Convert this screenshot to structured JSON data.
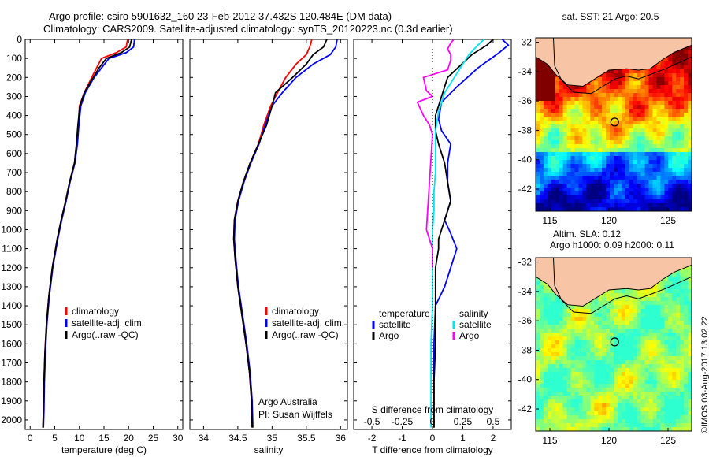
{
  "header": {
    "line1": "Argo profile: csiro 5901632_160 23-Feb-2012 37.432S 120.484E (DM data)",
    "line2": "Climatology: CARS2009. Satellite-adjusted climatology: synTS_20120223.nc (0.3d earlier)"
  },
  "colors": {
    "climatology": "#ff0000",
    "satellite": "#0000ff",
    "argo": "#000000",
    "argo_s": "#ff00ff",
    "sat_s": "#00e5ee",
    "land": "#f7c4a5"
  },
  "chart_data": [
    {
      "id": "temperature",
      "type": "line",
      "xlabel": "temperature (deg C)",
      "xlim": [
        -1,
        31
      ],
      "xticks": [
        "0",
        "5",
        "10",
        "15",
        "20",
        "25",
        "30"
      ],
      "xtick_values": [
        0,
        5,
        10,
        15,
        20,
        25,
        30
      ],
      "ylim": [
        2050,
        0
      ],
      "yticks": [
        "0",
        "100",
        "200",
        "300",
        "400",
        "500",
        "600",
        "700",
        "800",
        "900",
        "1000",
        "1100",
        "1200",
        "1300",
        "1400",
        "1500",
        "1600",
        "1700",
        "1800",
        "1900",
        "2000"
      ],
      "ytick_values": [
        0,
        100,
        200,
        300,
        400,
        500,
        600,
        700,
        800,
        900,
        1000,
        1100,
        1200,
        1300,
        1400,
        1500,
        1600,
        1700,
        1800,
        1900,
        2000
      ],
      "legend": [
        "climatology",
        "satellite-adj. clim.",
        "Argo(..raw -QC)"
      ],
      "series": [
        {
          "name": "climatology",
          "color": "#ff0000",
          "x": [
            19.8,
            19.5,
            17.5,
            14.5,
            13.5,
            12.5,
            11,
            10,
            9.8,
            9.5,
            9,
            8,
            7.2,
            6.3,
            5.5,
            4.5,
            3.8,
            3.3,
            3,
            2.8,
            2.7,
            2.6
          ],
          "y": [
            0,
            40,
            70,
            100,
            150,
            200,
            280,
            350,
            450,
            550,
            650,
            750,
            850,
            950,
            1050,
            1200,
            1350,
            1500,
            1650,
            1800,
            1950,
            2040
          ]
        },
        {
          "name": "satellite-adj. clim.",
          "color": "#0000ff",
          "x": [
            21.2,
            21,
            19.5,
            16,
            14.5,
            13,
            11.2,
            10.3,
            9.9,
            9.6,
            9.1,
            8.1,
            7.3,
            6.4,
            5.6,
            4.6,
            3.9,
            3.4,
            3.1,
            2.9,
            2.8,
            2.7
          ],
          "y": [
            0,
            40,
            70,
            100,
            150,
            200,
            280,
            350,
            450,
            550,
            650,
            750,
            850,
            950,
            1050,
            1200,
            1350,
            1500,
            1650,
            1800,
            1950,
            2040
          ]
        },
        {
          "name": "Argo(..raw -QC)",
          "color": "#000000",
          "x": [
            20.6,
            20.2,
            18.5,
            15.5,
            14,
            12.8,
            11,
            10.1,
            9.7,
            9.4,
            9,
            8,
            7.2,
            6.3,
            5.5,
            4.5,
            3.8,
            3.3,
            3,
            2.8,
            2.7,
            2.6
          ],
          "y": [
            0,
            40,
            70,
            100,
            150,
            200,
            280,
            350,
            450,
            550,
            650,
            750,
            850,
            950,
            1050,
            1200,
            1350,
            1500,
            1650,
            1800,
            1950,
            2040
          ]
        }
      ]
    },
    {
      "id": "salinity",
      "type": "line",
      "xlabel": "salinity",
      "xlim": [
        33.8,
        36.1
      ],
      "xticks": [
        "34",
        "34.5",
        "35",
        "35.5",
        "36"
      ],
      "xtick_values": [
        34,
        34.5,
        35,
        35.5,
        36
      ],
      "ylim": [
        2050,
        0
      ],
      "legend": [
        "climatology",
        "satellite-adj. clim.",
        "Argo(..raw -QC)"
      ],
      "annotation": [
        "Argo Australia",
        "PI: Susan Wijffels"
      ],
      "series": [
        {
          "name": "climatology",
          "color": "#ff0000",
          "x": [
            35.58,
            35.55,
            35.5,
            35.35,
            35.2,
            35.08,
            34.98,
            34.88,
            34.8,
            34.68,
            34.58,
            34.5,
            34.45,
            34.44,
            34.46,
            34.5,
            34.56,
            34.62,
            34.67,
            34.7,
            34.71
          ],
          "y": [
            0,
            40,
            80,
            130,
            200,
            280,
            350,
            450,
            550,
            650,
            750,
            850,
            950,
            1050,
            1150,
            1300,
            1450,
            1600,
            1750,
            1900,
            2040
          ]
        },
        {
          "name": "satellite-adj. clim.",
          "color": "#0000ff",
          "x": [
            35.95,
            35.93,
            35.85,
            35.6,
            35.35,
            35.15,
            35.0,
            34.9,
            34.81,
            34.69,
            34.59,
            34.51,
            34.46,
            34.45,
            34.47,
            34.51,
            34.57,
            34.63,
            34.68,
            34.71,
            34.72
          ],
          "y": [
            0,
            40,
            80,
            130,
            200,
            280,
            350,
            450,
            550,
            650,
            750,
            850,
            950,
            1050,
            1150,
            1300,
            1450,
            1600,
            1750,
            1900,
            2040
          ]
        },
        {
          "name": "Argo(..raw -QC)",
          "color": "#000000",
          "x": [
            35.8,
            35.75,
            35.6,
            35.5,
            35.3,
            35.05,
            35.0,
            34.92,
            34.8,
            34.68,
            34.58,
            34.5,
            34.45,
            34.44,
            34.46,
            34.5,
            34.56,
            34.62,
            34.67,
            34.7,
            34.71
          ],
          "y": [
            0,
            40,
            80,
            130,
            200,
            280,
            350,
            450,
            550,
            650,
            750,
            850,
            950,
            1050,
            1150,
            1300,
            1450,
            1600,
            1750,
            1900,
            2040
          ]
        }
      ]
    },
    {
      "id": "difference",
      "type": "line",
      "xlabel": "T difference from climatology",
      "xlabel2": "S difference from climatology",
      "xlim": [
        -2.6,
        2.6
      ],
      "xticks": [
        "-2",
        "-1",
        "0",
        "1",
        "2"
      ],
      "xtick_values": [
        -2,
        -1,
        0,
        1,
        2
      ],
      "xticks2": [
        "-0.5",
        "-0.25",
        "0",
        "0.25",
        "0.5"
      ],
      "legend_titles": [
        "temperature",
        "salinity"
      ],
      "legend_left": [
        "satellite",
        "Argo"
      ],
      "legend_right": [
        "satellite",
        "Argo"
      ],
      "ylim": [
        2050,
        0
      ],
      "series": [
        {
          "name": "temperature satellite",
          "color": "#0000ff",
          "x": [
            2.3,
            2.5,
            2.2,
            1.5,
            0.8,
            0.3,
            0.2,
            0.3,
            0.6,
            0.5,
            0.5,
            0.6,
            0.4,
            0.6,
            0.8,
            0.6,
            0.4,
            0.1,
            0.05,
            0.05,
            0.05
          ],
          "y": [
            0,
            30,
            70,
            150,
            250,
            330,
            420,
            480,
            550,
            650,
            750,
            850,
            950,
            1020,
            1100,
            1200,
            1300,
            1400,
            1600,
            1800,
            2040
          ]
        },
        {
          "name": "temperature Argo",
          "color": "#000000",
          "x": [
            2.0,
            1.8,
            1.3,
            0.5,
            0.3,
            0.1,
            0.1,
            0.2,
            0.4,
            0.5,
            0.6,
            0.4,
            0.3,
            0.2,
            0.2,
            0.1,
            0.1,
            0.1,
            0.05,
            0.05
          ],
          "y": [
            0,
            30,
            80,
            200,
            300,
            400,
            480,
            550,
            650,
            750,
            850,
            950,
            1000,
            1050,
            1100,
            1200,
            1400,
            1600,
            1800,
            2040
          ]
        },
        {
          "name": "salinity satellite",
          "color": "#00e5ee",
          "x": [
            1.7,
            1.5,
            1.2,
            0.8,
            0.4,
            0.2,
            0.1,
            0.1,
            0.1,
            0.05,
            0.05,
            0.0,
            0.0,
            0.0,
            -0.05,
            -0.05,
            -0.05
          ],
          "y": [
            0,
            30,
            80,
            180,
            280,
            380,
            480,
            600,
            700,
            800,
            900,
            1000,
            1200,
            1400,
            1600,
            1800,
            2040
          ]
        },
        {
          "name": "salinity Argo",
          "color": "#ff00ff",
          "x": [
            0.7,
            0.6,
            0.5,
            0.6,
            0.6,
            0.5,
            -0.3,
            -0.2,
            0.0,
            -0.5,
            -0.3,
            -0.1,
            0.0,
            -0.2,
            0.0,
            0.0
          ],
          "y": [
            0,
            20,
            50,
            80,
            110,
            160,
            200,
            270,
            300,
            330,
            400,
            450,
            500,
            1000,
            1100,
            1200
          ]
        }
      ]
    },
    {
      "id": "sst_map",
      "type": "heatmap",
      "title": "sat. SST: 21  Argo: 20.5",
      "xlim": [
        113.8,
        127
      ],
      "ylim": [
        -43.5,
        -31.7
      ],
      "xticks": [
        "115",
        "120",
        "125"
      ],
      "xtick_values": [
        115,
        120,
        125
      ],
      "yticks": [
        "-32",
        "-34",
        "-36",
        "-38",
        "-40",
        "-42"
      ],
      "ytick_values": [
        -32,
        -34,
        -36,
        -38,
        -40,
        -42
      ],
      "argo_position": [
        120.484,
        -37.432
      ]
    },
    {
      "id": "sla_map",
      "type": "heatmap",
      "title": "Altim. SLA: 0.12",
      "subtitle": "Argo h1000: 0.09  h2000: 0.11",
      "xlim": [
        113.8,
        127
      ],
      "ylim": [
        -43.5,
        -31.7
      ],
      "xticks": [
        "115",
        "120",
        "125"
      ],
      "xtick_values": [
        115,
        120,
        125
      ],
      "yticks": [
        "-32",
        "-34",
        "-36",
        "-38",
        "-40",
        "-42"
      ],
      "ytick_values": [
        -32,
        -34,
        -36,
        -38,
        -40,
        -42
      ],
      "argo_position": [
        120.484,
        -37.432
      ]
    }
  ],
  "footer_stamp": "©IMOS 03-Aug-2017 13:02:22"
}
